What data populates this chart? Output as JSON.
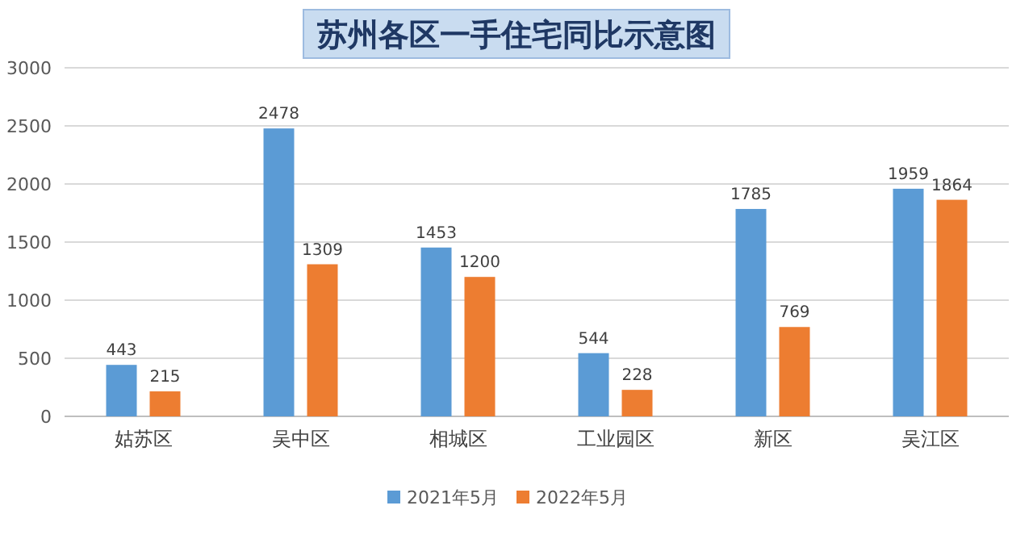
{
  "chart_data": {
    "type": "bar",
    "title": "苏州各区一手住宅同比示意图",
    "categories": [
      "姑苏区",
      "吴中区",
      "相城区",
      "工业园区",
      "新区",
      "吴江区"
    ],
    "series": [
      {
        "name": "2021年5月",
        "color": "#5b9bd5",
        "values": [
          443,
          2478,
          1453,
          544,
          1785,
          1959
        ]
      },
      {
        "name": "2022年5月",
        "color": "#ed7d31",
        "values": [
          215,
          1309,
          1200,
          228,
          769,
          1864
        ]
      }
    ],
    "ylim": [
      0,
      3000
    ],
    "yticks": [
      0,
      500,
      1000,
      1500,
      2000,
      2500,
      3000
    ],
    "grid": "y",
    "legend": "bottom",
    "data_labels": true
  }
}
